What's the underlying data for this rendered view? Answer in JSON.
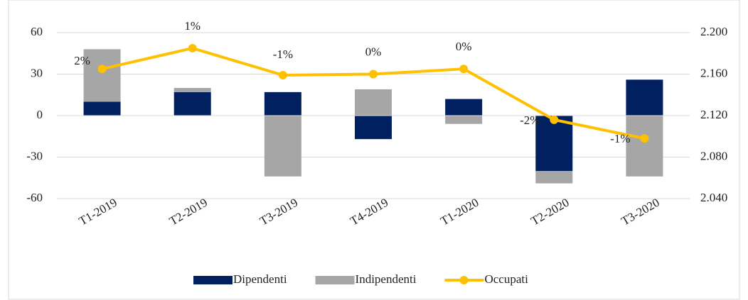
{
  "chart_data": {
    "type": "bar-line",
    "categories": [
      "T1-2019",
      "T2-2019",
      "T3-2019",
      "T4-2019",
      "T1-2020",
      "T2-2020",
      "T3-2020"
    ],
    "series": [
      {
        "name": "Dipendenti",
        "type": "bar",
        "color": "#002060",
        "values": [
          10,
          17,
          17,
          -17,
          12,
          -40,
          26
        ]
      },
      {
        "name": "Indipendenti",
        "type": "bar",
        "color": "#a6a6a6",
        "values": [
          38,
          3,
          -44,
          19,
          -6,
          -9,
          -44
        ]
      },
      {
        "name": "Occupati",
        "type": "line",
        "axis": "y2",
        "color": "#ffc000",
        "values": [
          2165,
          2185,
          2159,
          2160,
          2165,
          2116,
          2098
        ]
      }
    ],
    "annotations": [
      "2%",
      "1%",
      "-1%",
      "0%",
      "0%",
      "-2%",
      "-1%"
    ],
    "ylim": [
      -60,
      60
    ],
    "yticks": [
      -60,
      -30,
      0,
      30,
      60
    ],
    "y2lim": [
      2040,
      2200
    ],
    "y2ticks": [
      {
        "value": 2040,
        "label": "2.040"
      },
      {
        "value": 2080,
        "label": "2.080"
      },
      {
        "value": 2120,
        "label": "2.120"
      },
      {
        "value": 2160,
        "label": "2.160"
      },
      {
        "value": 2200,
        "label": "2.200"
      }
    ],
    "grid": true,
    "legend": "bottom"
  }
}
